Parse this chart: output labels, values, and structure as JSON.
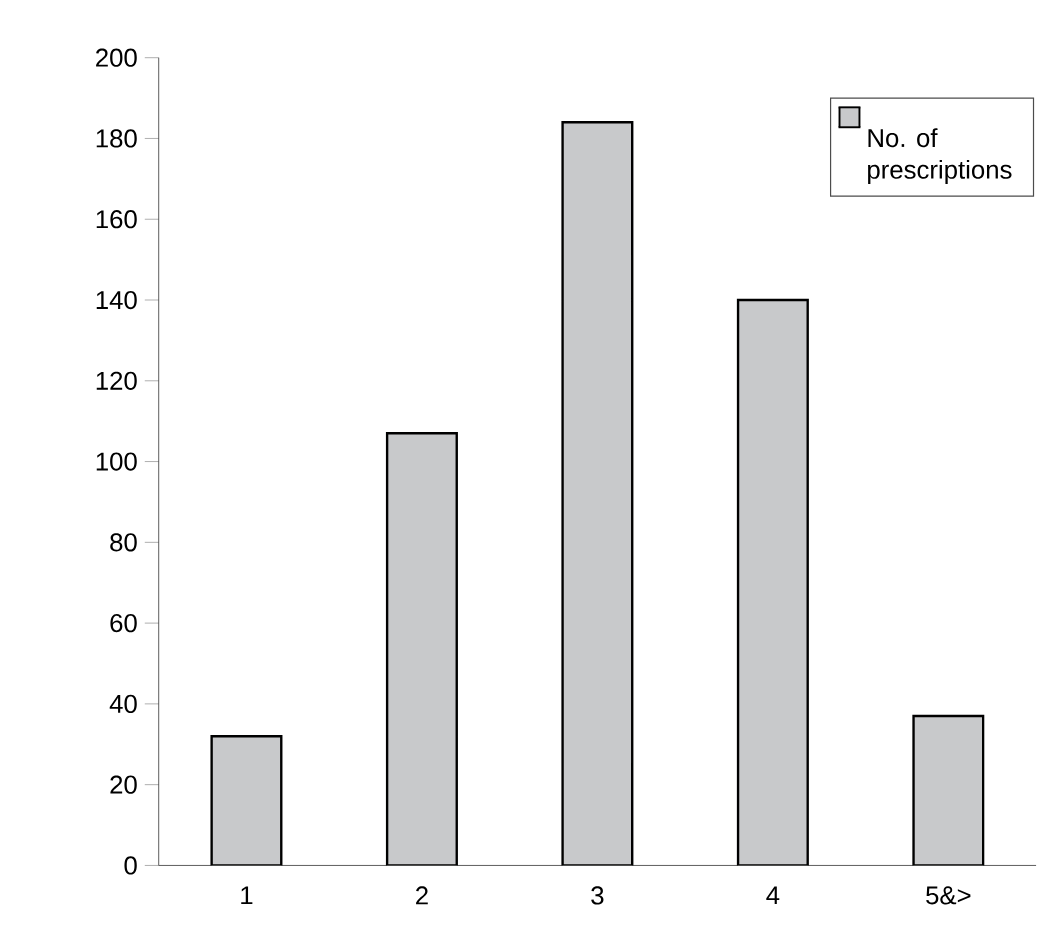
{
  "chart_data": {
    "type": "bar",
    "categories": [
      "1",
      "2",
      "3",
      "4",
      "5&>"
    ],
    "series": [
      {
        "name": "No. of prescriptions",
        "color": "#c8c9cb",
        "values": [
          32,
          107,
          184,
          140,
          37
        ]
      }
    ],
    "ylim": [
      0,
      200
    ],
    "yticks": [
      0,
      20,
      40,
      60,
      80,
      100,
      120,
      140,
      160,
      180,
      200
    ],
    "legend": "top right",
    "grid": false
  }
}
